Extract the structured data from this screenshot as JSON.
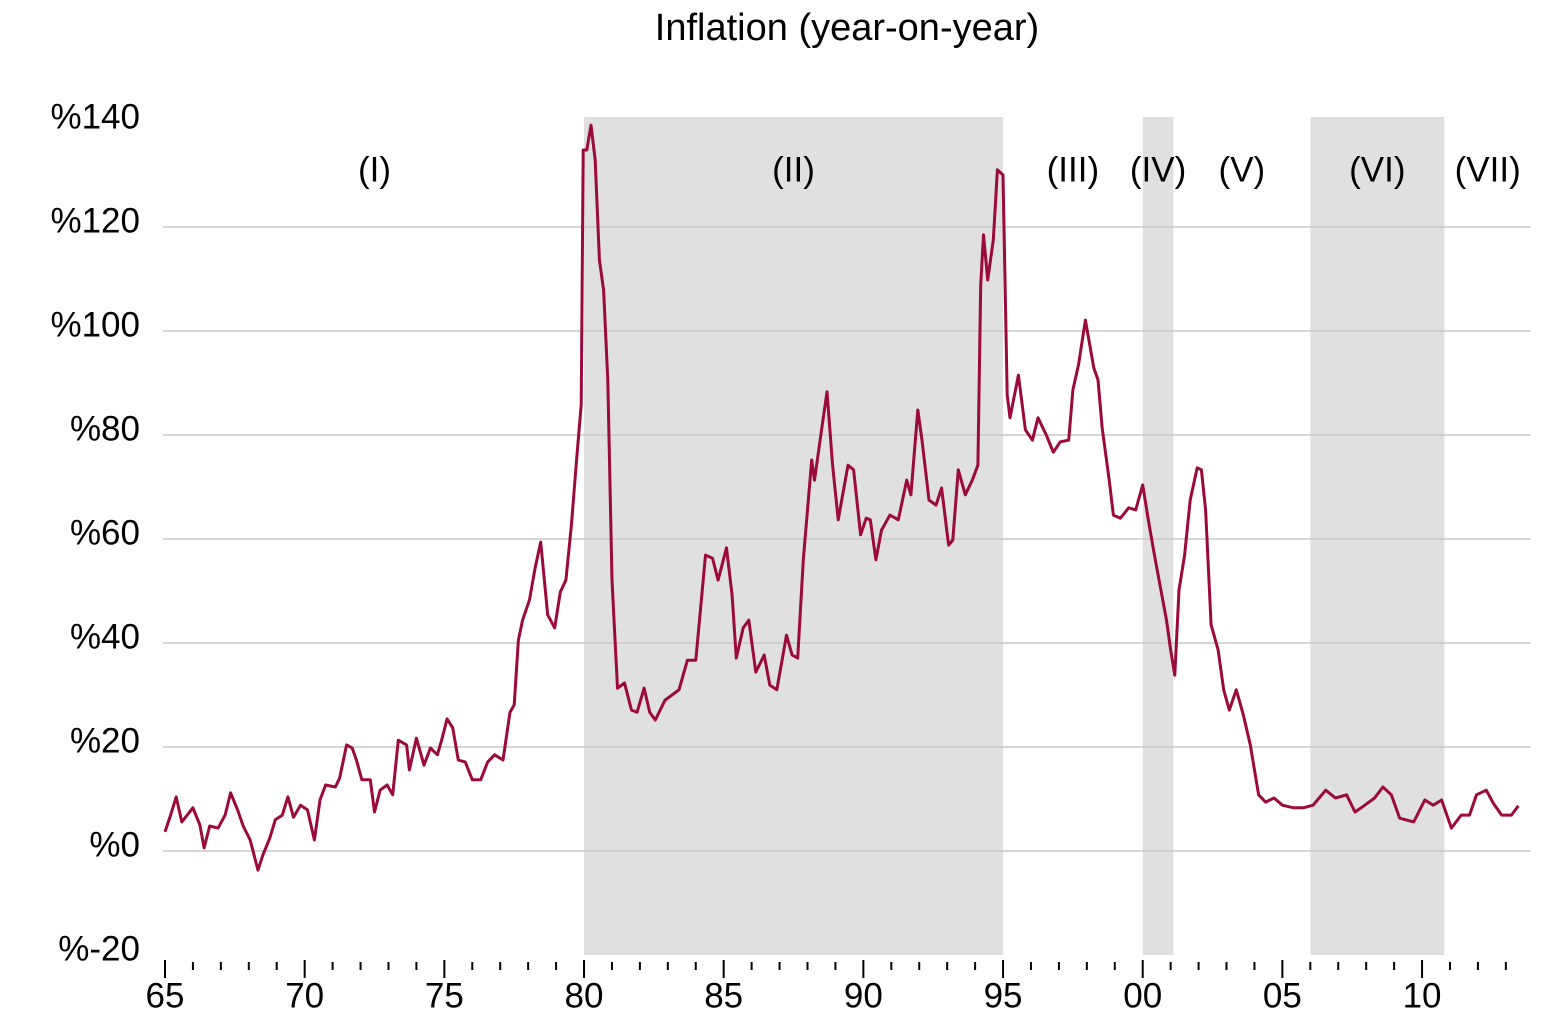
{
  "chart_data": {
    "type": "line",
    "title": "Inflation (year-on-year)",
    "xlim": [
      1965,
      2013.9
    ],
    "xticks": [
      {
        "value": 1965,
        "label": "65"
      },
      {
        "value": 1970,
        "label": "70"
      },
      {
        "value": 1975,
        "label": "75"
      },
      {
        "value": 1980,
        "label": "80"
      },
      {
        "value": 1985,
        "label": "85"
      },
      {
        "value": 1990,
        "label": "90"
      },
      {
        "value": 1995,
        "label": "95"
      },
      {
        "value": 2000,
        "label": "00"
      },
      {
        "value": 2005,
        "label": "05"
      },
      {
        "value": 2010,
        "label": "10"
      }
    ],
    "xminorticks": [
      1966,
      1967,
      1968,
      1969,
      1971,
      1972,
      1973,
      1974,
      1976,
      1977,
      1978,
      1979,
      1981,
      1982,
      1983,
      1984,
      1986,
      1987,
      1988,
      1989,
      1991,
      1992,
      1993,
      1994,
      1996,
      1997,
      1998,
      1999,
      2001,
      2002,
      2003,
      2004,
      2006,
      2007,
      2008,
      2009,
      2011,
      2012,
      2013
    ],
    "ylim": [
      -20,
      140
    ],
    "yticks": [
      {
        "value": -20,
        "label": "%-20"
      },
      {
        "value": 0,
        "label": "%0"
      },
      {
        "value": 20,
        "label": "%20"
      },
      {
        "value": 40,
        "label": "%40"
      },
      {
        "value": 60,
        "label": "%60"
      },
      {
        "value": 80,
        "label": "%80"
      },
      {
        "value": 100,
        "label": "%100"
      },
      {
        "value": 120,
        "label": "%120"
      },
      {
        "value": 140,
        "label": "%140"
      }
    ],
    "grid": true,
    "shade_color": "#e0e0e0",
    "periods": [
      {
        "label": "(I)",
        "start": 1965,
        "end": 1980,
        "shaded": false
      },
      {
        "label": "(II)",
        "start": 1980,
        "end": 1995,
        "shaded": true
      },
      {
        "label": "(III)",
        "start": 1995,
        "end": 2000,
        "shaded": false
      },
      {
        "label": "(IV)",
        "start": 2000,
        "end": 2001.1,
        "shaded": true
      },
      {
        "label": "(V)",
        "start": 2001.1,
        "end": 2006,
        "shaded": false
      },
      {
        "label": "(VI)",
        "start": 2006,
        "end": 2010.8,
        "shaded": true
      },
      {
        "label": "(VII)",
        "start": 2010.8,
        "end": 2013.9,
        "shaded": false
      }
    ],
    "x": [
      1965.0,
      1965.2,
      1965.4,
      1965.6,
      1966.0,
      1966.25,
      1966.4,
      1966.6,
      1966.9,
      1967.15,
      1967.35,
      1967.6,
      1967.8,
      1968.05,
      1968.33,
      1968.5,
      1968.75,
      1968.95,
      1969.2,
      1969.4,
      1969.6,
      1969.85,
      1970.1,
      1970.35,
      1970.55,
      1970.75,
      1971.1,
      1971.25,
      1971.5,
      1971.7,
      1971.85,
      1972.05,
      1972.35,
      1972.5,
      1972.7,
      1972.95,
      1973.15,
      1973.35,
      1973.65,
      1973.75,
      1974.0,
      1974.27,
      1974.5,
      1974.75,
      1974.9,
      1975.1,
      1975.3,
      1975.5,
      1975.75,
      1976.0,
      1976.3,
      1976.55,
      1976.8,
      1977.1,
      1977.35,
      1977.5,
      1977.65,
      1977.8,
      1978.05,
      1978.25,
      1978.45,
      1978.7,
      1978.95,
      1979.15,
      1979.35,
      1979.55,
      1979.75,
      1979.9,
      1979.97,
      1980.1,
      1980.25,
      1980.4,
      1980.55,
      1980.7,
      1980.85,
      1981.0,
      1981.2,
      1981.45,
      1981.7,
      1981.9,
      1982.15,
      1982.35,
      1982.55,
      1982.9,
      1983.15,
      1983.4,
      1983.7,
      1984.0,
      1984.35,
      1984.6,
      1984.8,
      1985.1,
      1985.3,
      1985.45,
      1985.7,
      1985.9,
      1986.15,
      1986.45,
      1986.65,
      1986.9,
      1987.25,
      1987.45,
      1987.65,
      1987.85,
      1988.15,
      1988.25,
      1988.45,
      1988.7,
      1988.9,
      1989.1,
      1989.45,
      1989.65,
      1989.9,
      1990.1,
      1990.25,
      1990.45,
      1990.65,
      1990.95,
      1991.25,
      1991.55,
      1991.7,
      1991.95,
      1992.1,
      1992.35,
      1992.6,
      1992.8,
      1993.05,
      1993.2,
      1993.4,
      1993.65,
      1993.9,
      1994.1,
      1994.2,
      1994.3,
      1994.45,
      1994.65,
      1994.8,
      1995.0,
      1995.15,
      1995.25,
      1995.55,
      1995.8,
      1996.05,
      1996.25,
      1996.55,
      1996.8,
      1997.05,
      1997.35,
      1997.5,
      1997.7,
      1997.95,
      1998.25,
      1998.4,
      1998.55,
      1998.8,
      1998.95,
      1999.2,
      1999.5,
      1999.75,
      2000.0,
      2000.2,
      2000.4,
      2000.65,
      2000.85,
      2001.0,
      2001.15,
      2001.3,
      2001.5,
      2001.7,
      2001.95,
      2002.1,
      2002.25,
      2002.45,
      2002.7,
      2002.9,
      2003.1,
      2003.35,
      2003.6,
      2003.85,
      2004.15,
      2004.4,
      2004.7,
      2005.0,
      2005.4,
      2005.75,
      2006.1,
      2006.55,
      2006.9,
      2007.3,
      2007.6,
      2007.95,
      2008.3,
      2008.6,
      2008.9,
      2009.2,
      2009.7,
      2010.1,
      2010.4,
      2010.7,
      2011.05,
      2011.4,
      2011.7,
      2011.95,
      2012.3,
      2012.55,
      2012.85,
      2013.2,
      2013.45
    ],
    "series": [
      {
        "color": "#9b0a3a",
        "values": [
          3.7,
          6.9,
          10.4,
          5.6,
          8.3,
          5,
          0.6,
          4.8,
          4.4,
          6.9,
          11.2,
          7.9,
          4.8,
          2.1,
          -3.7,
          -0.8,
          2.5,
          6,
          6.9,
          10.4,
          6.5,
          8.8,
          7.9,
          2.1,
          9.8,
          12.7,
          12.3,
          14,
          20.4,
          19.8,
          17.5,
          13.7,
          13.7,
          7.5,
          11.7,
          12.7,
          10.8,
          21.3,
          20.4,
          15.6,
          21.7,
          16.5,
          19.8,
          18.5,
          21.3,
          25.4,
          23.7,
          17.5,
          17.1,
          13.7,
          13.7,
          17.1,
          18.5,
          17.5,
          26.7,
          28.1,
          40.6,
          44.4,
          48.3,
          54.4,
          59.4,
          45.4,
          42.9,
          49.8,
          52.1,
          62.7,
          76.2,
          85.8,
          134.8,
          134.8,
          139.6,
          132.9,
          113.7,
          107.9,
          90.6,
          52.1,
          31.3,
          32.3,
          27.1,
          26.7,
          31.3,
          26.7,
          25.2,
          29,
          30,
          31,
          36.7,
          36.7,
          56.9,
          56.3,
          52.1,
          58.3,
          49.2,
          37.1,
          42.9,
          44.4,
          34.4,
          37.7,
          31.9,
          31,
          41.5,
          37.7,
          37.1,
          56,
          75.2,
          71.3,
          79,
          88.3,
          74.2,
          63.7,
          74.2,
          73.3,
          60.8,
          64,
          63.7,
          56,
          61.7,
          64.6,
          63.7,
          71.3,
          68.5,
          84.8,
          79,
          67.5,
          66.5,
          69.8,
          58.8,
          59.8,
          73.3,
          68.5,
          71.3,
          74.2,
          108.8,
          118.5,
          109.8,
          117.5,
          131,
          130,
          87.7,
          83.3,
          91.5,
          81,
          79,
          83.3,
          80,
          76.7,
          78.7,
          79,
          88.7,
          93.5,
          102.1,
          92.9,
          90.6,
          81.3,
          71.3,
          64.6,
          64,
          66,
          65.6,
          70.4,
          63.7,
          57.5,
          50.2,
          44.4,
          38.7,
          33.8,
          50.2,
          56.9,
          67.5,
          73.7,
          73.3,
          65.6,
          43.5,
          38.7,
          31,
          27.1,
          31,
          26.2,
          20.4,
          10.8,
          9.4,
          10.2,
          8.8,
          8.3,
          8.3,
          8.8,
          11.7,
          10.2,
          10.8,
          7.5,
          8.8,
          10.2,
          12.3,
          10.8,
          6.3,
          5.6,
          9.8,
          8.8,
          9.8,
          4.4,
          6.9,
          6.9,
          10.8,
          11.7,
          9.2,
          6.9,
          6.9,
          8.7
        ]
      }
    ]
  }
}
